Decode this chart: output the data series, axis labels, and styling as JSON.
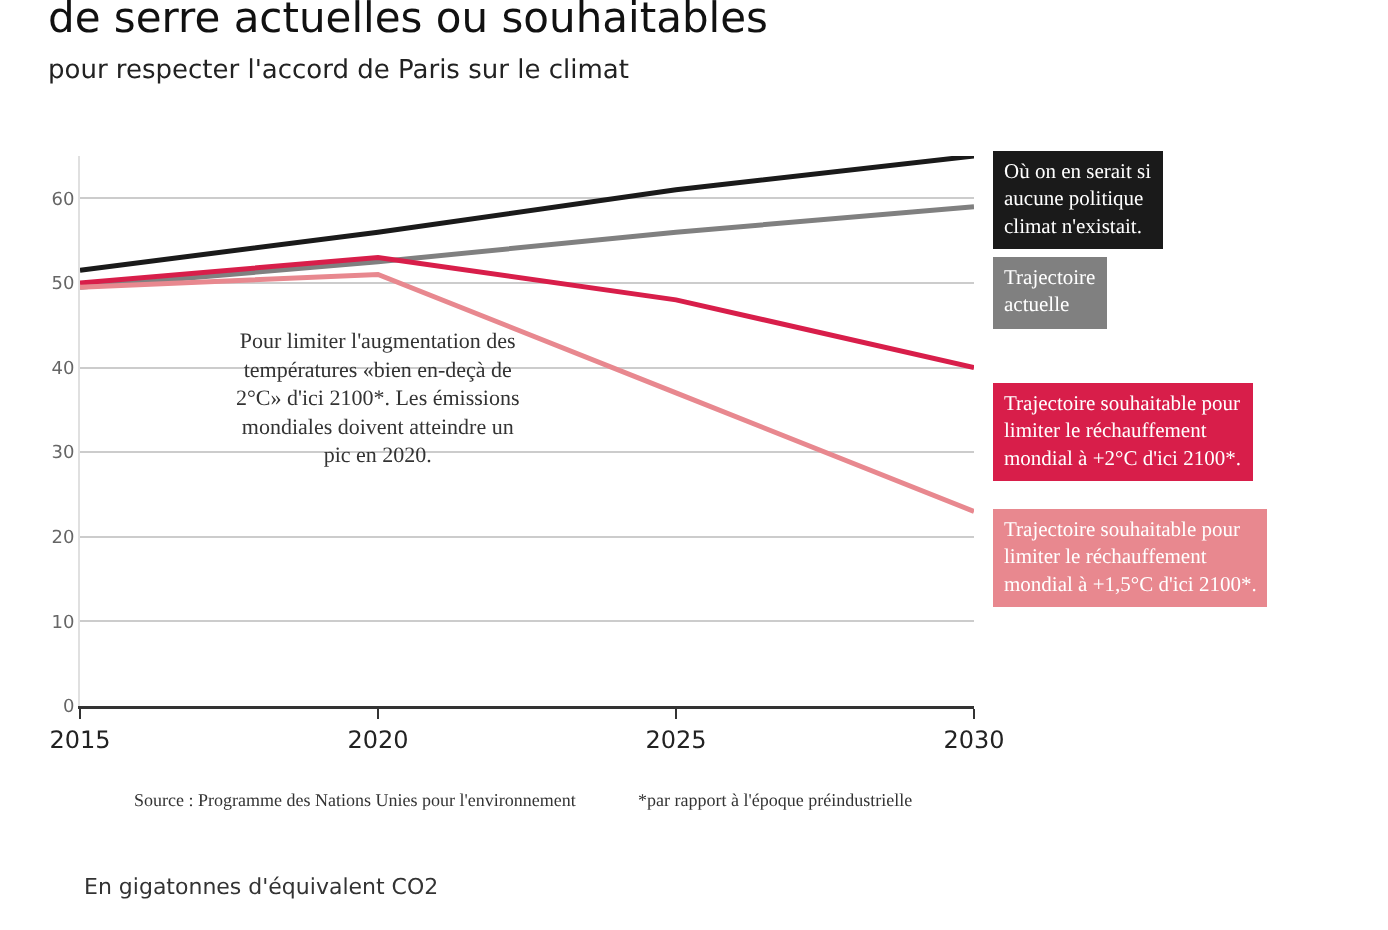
{
  "chart_data": {
    "type": "line",
    "title": "de serre actuelles ou souhaitables",
    "subtitle": "pour respecter l'accord de Paris sur le climat",
    "x": [
      2015,
      2020,
      2025,
      2030
    ],
    "series": [
      {
        "name": "Où on en serait si\naucune politique\nclimat n'existait.",
        "color": "#1a1a1a",
        "values": [
          51.5,
          56,
          61,
          65
        ]
      },
      {
        "name": "Trajectoire\nactuelle",
        "color": "#808080",
        "values": [
          49.5,
          52.5,
          56,
          59
        ]
      },
      {
        "name": "Trajectoire souhaitable pour\nlimiter le réchauffement\nmondial à +2°C d'ici 2100*.",
        "color": "#d81e4a",
        "values": [
          50,
          53,
          48,
          40
        ]
      },
      {
        "name": "Trajectoire souhaitable pour\nlimiter le réchauffement\nmondial à +1,5°C d'ici 2100*.",
        "color": "#e8888f",
        "values": [
          49.5,
          51,
          37,
          23
        ]
      }
    ],
    "annotations": [
      "Pour limiter l'augmentation des\ntempératures «bien en-deçà de\n2°C» d'ici 2100*. Les émissions\nmondiales doivent atteindre un\npic en 2020.",
      "Source : Programme des Nations Unies pour l'environnement",
      "*par rapport à l'époque préindustrielle",
      "En gigatonnes d'équivalent CO2"
    ],
    "xlim": [
      2015,
      2030
    ],
    "xticks": [
      2015,
      2020,
      2025,
      2030
    ],
    "ylim": [
      0,
      65
    ],
    "yticks": [
      0,
      10,
      20,
      30,
      40,
      50,
      60
    ],
    "grid": "y",
    "legend": false,
    "marker": "none",
    "line_style": "solid"
  }
}
